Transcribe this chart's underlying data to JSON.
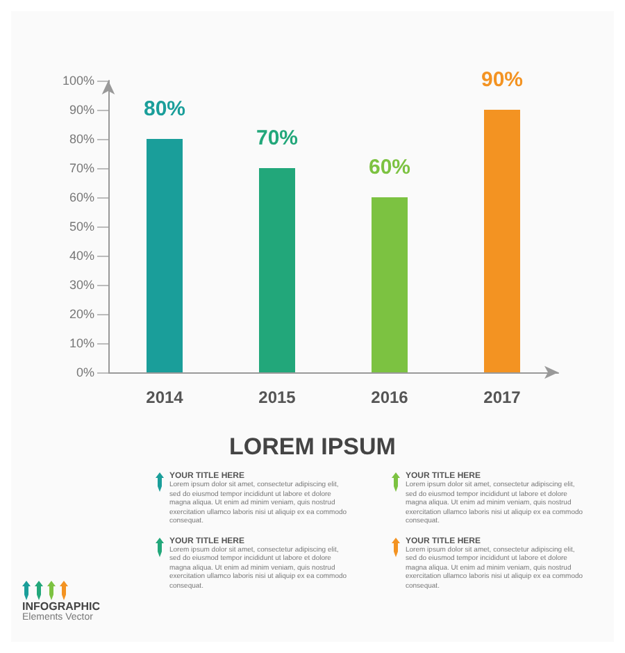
{
  "chart_data": {
    "type": "bar",
    "title": "LOREM IPSUM",
    "categories": [
      "2014",
      "2015",
      "2016",
      "2017"
    ],
    "values": [
      80,
      70,
      60,
      90
    ],
    "colors": [
      "#1a9e9a",
      "#22a77a",
      "#7cc241",
      "#f39322"
    ],
    "value_labels": [
      "80%",
      "70%",
      "60%",
      "90%"
    ],
    "ylim": [
      0,
      100
    ],
    "yticks": [
      {
        "value": 0,
        "label": "0%"
      },
      {
        "value": 10,
        "label": "10%"
      },
      {
        "value": 20,
        "label": "20%"
      },
      {
        "value": 30,
        "label": "30%"
      },
      {
        "value": 40,
        "label": "40%"
      },
      {
        "value": 50,
        "label": "50%"
      },
      {
        "value": 60,
        "label": "60%"
      },
      {
        "value": 70,
        "label": "70%"
      },
      {
        "value": 80,
        "label": "80%"
      },
      {
        "value": 90,
        "label": "90%"
      },
      {
        "value": 100,
        "label": "100%"
      }
    ],
    "grid": false,
    "annotations": [
      "YOUR TITLE HERE",
      "Lorem ipsum dolor sit amet, consectetur adipiscing elit, sed do eiusmod tempor incididunt ut labore et dolore magna aliqua. Ut enim ad minim veniam, quis nostrud exercitation ullamco laboris nisi ut aliquip ex ea commodo consequat.",
      "YOUR TITLE HERE",
      "Lorem ipsum dolor sit amet, consectetur adipiscing elit, sed do eiusmod tempor incididunt ut labore et dolore magna aliqua. Ut enim ad minim veniam, quis nostrud exercitation ullamco laboris nisi ut aliquip ex ea commodo consequat.",
      "YOUR TITLE HERE",
      "Lorem ipsum dolor sit amet, consectetur adipiscing elit, sed do eiusmod tempor incididunt ut labore et dolore magna aliqua. Ut enim ad minim veniam, quis nostrud exercitation ullamco laboris nisi ut aliquip ex ea commodo consequat.",
      "YOUR TITLE HERE",
      "Lorem ipsum dolor sit amet, consectetur adipiscing elit, sed do eiusmod tempor incididunt ut labore et dolore magna aliqua. Ut enim ad minim veniam, quis nostrud exercitation ullamco laboris nisi ut aliquip ex ea commodo consequat.",
      "INFOGRAPHIC",
      "Elements Vector"
    ]
  }
}
